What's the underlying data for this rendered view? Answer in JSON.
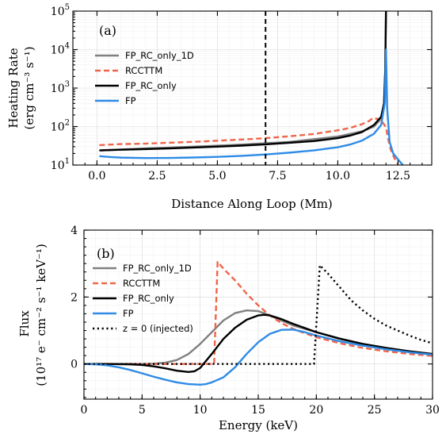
{
  "chart_data": [
    {
      "type": "line",
      "panel_label": "(a)",
      "xlabel": "Distance Along Loop (Mm)",
      "ylabel_line1": "Heating Rate",
      "ylabel_line2": "(erg cm⁻³ s⁻¹)",
      "xlim": [
        -1.0,
        13.9
      ],
      "ylim": [
        10,
        100000
      ],
      "yscale": "log",
      "grid": true,
      "x_ticks": [
        0.0,
        2.5,
        5.0,
        7.5,
        10.0,
        12.5
      ],
      "x_tick_labels": [
        "0.0",
        "2.5",
        "5.0",
        "7.5",
        "10.0",
        "12.5"
      ],
      "y_ticks": [
        10,
        100,
        1000,
        10000,
        100000
      ],
      "y_tick_labels": [
        {
          "base": "10",
          "exp": "1"
        },
        {
          "base": "10",
          "exp": "2"
        },
        {
          "base": "10",
          "exp": "3"
        },
        {
          "base": "10",
          "exp": "4"
        },
        {
          "base": "10",
          "exp": "5"
        }
      ],
      "vline": {
        "x": 7.0,
        "style": "dashed",
        "color": "#000000"
      },
      "legend_position": "upper-left",
      "series": [
        {
          "name": "FP_RC_only_1D",
          "color": "#808080",
          "dash": "",
          "x": [
            0.1,
            2,
            4,
            6,
            8,
            10,
            11,
            11.5,
            11.8,
            11.92,
            11.97,
            12.0
          ],
          "y": [
            24,
            27,
            30,
            34,
            40,
            55,
            75,
            100,
            160,
            400,
            3000,
            100000
          ]
        },
        {
          "name": "RCCTTM",
          "color": "#f0654a",
          "dash": "7,4",
          "x": [
            0.1,
            1,
            2,
            3,
            4,
            5,
            6,
            7,
            8,
            9,
            10,
            10.5,
            11,
            11.3,
            11.45,
            11.6,
            11.8,
            12.0,
            12.1,
            12.2,
            12.35,
            12.5
          ],
          "y": [
            33,
            35,
            36,
            38,
            40,
            43,
            46,
            50,
            56,
            64,
            80,
            92,
            115,
            140,
            165,
            160,
            150,
            95,
            45,
            25,
            15,
            10.5
          ]
        },
        {
          "name": "FP_RC_only",
          "color": "#000000",
          "dash": "",
          "x": [
            0.1,
            1,
            2,
            3,
            4,
            5,
            6,
            7,
            8,
            9,
            10,
            10.5,
            11,
            11.5,
            11.8,
            11.92,
            11.97,
            12.0
          ],
          "y": [
            24,
            25,
            26,
            27,
            28.5,
            30,
            32,
            34.5,
            38,
            42,
            50,
            58,
            72,
            110,
            180,
            400,
            3000,
            100000
          ]
        },
        {
          "name": "FP",
          "color": "#2e8be6",
          "dash": "",
          "x": [
            0.1,
            0.5,
            1,
            2,
            3,
            4,
            5,
            6,
            7,
            8,
            9,
            10,
            10.5,
            11,
            11.5,
            11.8,
            11.95,
            12.0,
            12.05,
            12.15,
            12.3,
            12.5,
            12.7
          ],
          "y": [
            17,
            16.2,
            15.6,
            15.2,
            15.3,
            15.7,
            16.3,
            17.3,
            18.8,
            21,
            24,
            29,
            34,
            43,
            65,
            110,
            400,
            10000,
            300,
            40,
            20,
            14,
            10
          ]
        }
      ]
    },
    {
      "type": "line",
      "panel_label": "(b)",
      "xlabel": "Energy (keV)",
      "ylabel_line1": "Flux",
      "ylabel_line2": "(10¹⁷ e⁻ cm⁻² s⁻¹ keV⁻¹)",
      "xlim": [
        0,
        30
      ],
      "ylim": [
        -1.05,
        4.0
      ],
      "yscale": "linear",
      "grid": true,
      "x_ticks": [
        0,
        5,
        10,
        15,
        20,
        25,
        30
      ],
      "x_tick_labels": [
        "0",
        "5",
        "10",
        "15",
        "20",
        "25",
        "30"
      ],
      "y_ticks": [
        0,
        2,
        4
      ],
      "y_tick_labels": [
        "0",
        "2",
        "4"
      ],
      "legend_position": "upper-left",
      "series": [
        {
          "name": "FP_RC_only_1D",
          "color": "#808080",
          "dash": "",
          "x": [
            0,
            2,
            4,
            5,
            6,
            7,
            8,
            9,
            10,
            11,
            12,
            13,
            14,
            15,
            16,
            17,
            18,
            20,
            22,
            24,
            26,
            28,
            30
          ],
          "y": [
            0,
            0,
            0,
            0,
            0.01,
            0.04,
            0.12,
            0.3,
            0.6,
            0.95,
            1.3,
            1.52,
            1.6,
            1.58,
            1.45,
            1.3,
            1.15,
            0.95,
            0.75,
            0.6,
            0.48,
            0.38,
            0.3
          ]
        },
        {
          "name": "RCCTTM",
          "color": "#f0654a",
          "dash": "7,4",
          "x": [
            0,
            5,
            10,
            11.2,
            11.5,
            12,
            13,
            14,
            15,
            16,
            17,
            18,
            19,
            20,
            22,
            24,
            26,
            28,
            30
          ],
          "y": [
            0,
            0,
            0,
            0,
            3.05,
            2.85,
            2.5,
            2.1,
            1.75,
            1.45,
            1.22,
            1.05,
            0.92,
            0.8,
            0.62,
            0.48,
            0.38,
            0.3,
            0.24
          ]
        },
        {
          "name": "FP_RC_only",
          "color": "#000000",
          "dash": "",
          "x": [
            0,
            2,
            4,
            5,
            6,
            7,
            8,
            9,
            9.5,
            10,
            11,
            12,
            13,
            14,
            15,
            15.5,
            16,
            17,
            18,
            20,
            22,
            24,
            26,
            28,
            30
          ],
          "y": [
            0,
            0,
            -0.01,
            -0.03,
            -0.07,
            -0.13,
            -0.2,
            -0.24,
            -0.22,
            -0.12,
            0.3,
            0.75,
            1.08,
            1.32,
            1.45,
            1.47,
            1.45,
            1.34,
            1.2,
            0.95,
            0.76,
            0.6,
            0.48,
            0.38,
            0.3
          ]
        },
        {
          "name": "FP",
          "color": "#2e8be6",
          "dash": "",
          "x": [
            0,
            1,
            2,
            3,
            4,
            5,
            6,
            7,
            8,
            9,
            10,
            10.5,
            11,
            12,
            13,
            14,
            15,
            16,
            17,
            18,
            19,
            20,
            22,
            24,
            26,
            28,
            30
          ],
          "y": [
            0,
            -0.01,
            -0.04,
            -0.1,
            -0.18,
            -0.28,
            -0.38,
            -0.47,
            -0.55,
            -0.6,
            -0.62,
            -0.6,
            -0.55,
            -0.4,
            -0.1,
            0.3,
            0.65,
            0.9,
            1.02,
            1.03,
            0.95,
            0.85,
            0.68,
            0.55,
            0.44,
            0.35,
            0.28
          ]
        },
        {
          "name": "z = 0 (injected)",
          "color": "#000000",
          "dash": "2.2,3.6",
          "x": [
            0,
            5,
            10,
            15,
            19.8,
            20.3,
            21,
            22,
            23,
            24,
            25,
            26,
            27,
            28,
            29,
            30
          ],
          "y": [
            0,
            0,
            0,
            0,
            0,
            2.95,
            2.7,
            2.3,
            1.9,
            1.6,
            1.35,
            1.15,
            1.0,
            0.85,
            0.72,
            0.62
          ]
        }
      ]
    }
  ]
}
